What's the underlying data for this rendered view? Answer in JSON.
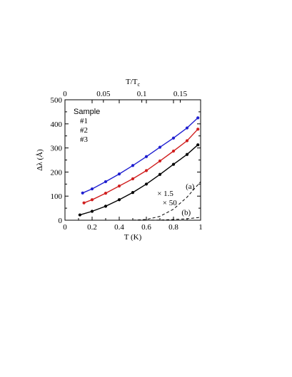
{
  "chart_data": {
    "type": "scatter",
    "xlabel": "T (K)",
    "ylabel": "Δλ (Å)",
    "top_xlabel": "T/T",
    "top_xlabel_sub": "c",
    "xlim": [
      0,
      1
    ],
    "ylim": [
      0,
      500
    ],
    "top_xlim": [
      0,
      0.1765
    ],
    "x_ticks": [
      "0",
      "0.2",
      "0.4",
      "0.6",
      "0.8",
      "1"
    ],
    "y_ticks": [
      "0",
      "100",
      "200",
      "300",
      "400",
      "500"
    ],
    "top_ticks": [
      "0",
      "0.05",
      "0.1",
      "0.15"
    ],
    "legend_title": "Sample",
    "series": [
      {
        "name": "#1",
        "color": "#1f1fd0",
        "x": [
          0.13,
          0.2,
          0.3,
          0.4,
          0.5,
          0.6,
          0.7,
          0.8,
          0.9,
          0.98
        ],
        "y": [
          113,
          130,
          160,
          192,
          227,
          264,
          303,
          341,
          383,
          425
        ]
      },
      {
        "name": "#2",
        "color": "#d01f1f",
        "x": [
          0.14,
          0.2,
          0.3,
          0.4,
          0.5,
          0.6,
          0.7,
          0.8,
          0.9,
          0.98
        ],
        "y": [
          72,
          85,
          112,
          142,
          172,
          206,
          246,
          287,
          330,
          378
        ]
      },
      {
        "name": "#3",
        "color": "#000000",
        "x": [
          0.11,
          0.2,
          0.3,
          0.4,
          0.5,
          0.6,
          0.7,
          0.8,
          0.9,
          0.98
        ],
        "y": [
          22,
          37,
          58,
          85,
          115,
          150,
          190,
          232,
          273,
          313
        ]
      }
    ],
    "dashed_curves": [
      {
        "label": "(a)",
        "multiplier_label": "× 1.5",
        "x": [
          0.5,
          0.6,
          0.7,
          0.8,
          0.9,
          1.0
        ],
        "y": [
          0,
          3,
          16,
          46,
          96,
          160
        ]
      },
      {
        "label": "(b)",
        "multiplier_label": "× 50",
        "x": [
          0.6,
          0.7,
          0.8,
          0.9,
          1.0
        ],
        "y": [
          0,
          0.5,
          3,
          6,
          12
        ]
      }
    ]
  }
}
